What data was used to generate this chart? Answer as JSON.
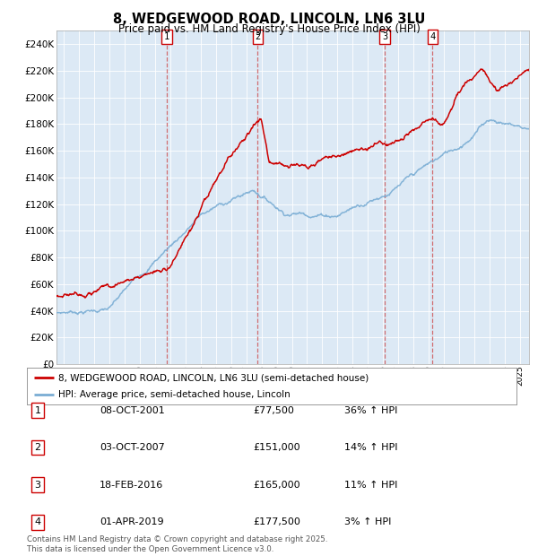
{
  "title": "8, WEDGEWOOD ROAD, LINCOLN, LN6 3LU",
  "subtitle": "Price paid vs. HM Land Registry's House Price Index (HPI)",
  "ylim": [
    0,
    250000
  ],
  "yticks": [
    0,
    20000,
    40000,
    60000,
    80000,
    100000,
    120000,
    140000,
    160000,
    180000,
    200000,
    220000,
    240000
  ],
  "xlim_start": 1994.5,
  "xlim_end": 2025.6,
  "bg_color": "#dce9f5",
  "red_color": "#cc0000",
  "blue_color": "#7aadd4",
  "transactions": [
    {
      "num": 1,
      "date_x": 2001.77,
      "price": 77500,
      "label": "08-OCT-2001",
      "pct": "36%",
      "dir": "↑"
    },
    {
      "num": 2,
      "date_x": 2007.75,
      "price": 151000,
      "label": "03-OCT-2007",
      "pct": "14%",
      "dir": "↑"
    },
    {
      "num": 3,
      "date_x": 2016.12,
      "price": 165000,
      "label": "18-FEB-2016",
      "pct": "11%",
      "dir": "↑"
    },
    {
      "num": 4,
      "date_x": 2019.25,
      "price": 177500,
      "label": "01-APR-2019",
      "pct": "3%",
      "dir": "↑"
    }
  ],
  "legend_line1": "8, WEDGEWOOD ROAD, LINCOLN, LN6 3LU (semi-detached house)",
  "legend_line2": "HPI: Average price, semi-detached house, Lincoln",
  "footer": "Contains HM Land Registry data © Crown copyright and database right 2025.\nThis data is licensed under the Open Government Licence v3.0."
}
